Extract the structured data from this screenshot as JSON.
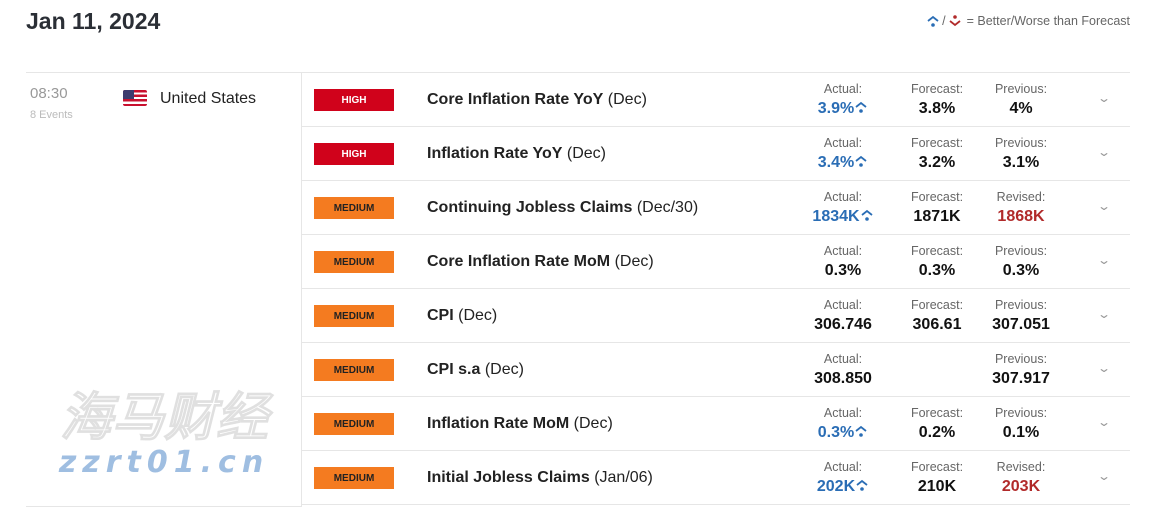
{
  "date": "Jan 11, 2024",
  "legend": {
    "text": "= Better/Worse than Forecast",
    "better_icon": "better-arrow-icon",
    "worse_icon": "worse-arrow-icon",
    "better_color": "#2a6db5",
    "worse_color": "#b12a2a"
  },
  "group": {
    "time": "08:30",
    "count": "8 Events",
    "country": "United States"
  },
  "events": [
    {
      "impact": "HIGH",
      "name": "Core Inflation Rate YoY",
      "period": "(Dec)",
      "l1": "Actual:",
      "actual": "3.9%",
      "trend": "up",
      "l2": "Forecast:",
      "forecast": "3.8%",
      "l3": "Previous:",
      "previous": "4%",
      "prev_color": ""
    },
    {
      "impact": "HIGH",
      "name": "Inflation Rate YoY",
      "period": "(Dec)",
      "l1": "Actual:",
      "actual": "3.4%",
      "trend": "up",
      "l2": "Forecast:",
      "forecast": "3.2%",
      "l3": "Previous:",
      "previous": "3.1%",
      "prev_color": ""
    },
    {
      "impact": "MEDIUM",
      "name": "Continuing Jobless Claims",
      "period": "(Dec/30)",
      "l1": "Actual:",
      "actual": "1834K",
      "trend": "up",
      "l2": "Forecast:",
      "forecast": "1871K",
      "l3": "Revised:",
      "previous": "1868K",
      "prev_color": "#b12a2a"
    },
    {
      "impact": "MEDIUM",
      "name": "Core Inflation Rate MoM",
      "period": "(Dec)",
      "l1": "Actual:",
      "actual": "0.3%",
      "trend": "",
      "l2": "Forecast:",
      "forecast": "0.3%",
      "l3": "Previous:",
      "previous": "0.3%",
      "prev_color": ""
    },
    {
      "impact": "MEDIUM",
      "name": "CPI",
      "period": "(Dec)",
      "l1": "Actual:",
      "actual": "306.746",
      "trend": "",
      "l2": "Forecast:",
      "forecast": "306.61",
      "l3": "Previous:",
      "previous": "307.051",
      "prev_color": ""
    },
    {
      "impact": "MEDIUM",
      "name": "CPI s.a",
      "period": "(Dec)",
      "l1": "Actual:",
      "actual": "308.850",
      "trend": "",
      "l2": "",
      "forecast": "",
      "l3": "Previous:",
      "previous": "307.917",
      "prev_color": ""
    },
    {
      "impact": "MEDIUM",
      "name": "Inflation Rate MoM",
      "period": "(Dec)",
      "l1": "Actual:",
      "actual": "0.3%",
      "trend": "up",
      "l2": "Forecast:",
      "forecast": "0.2%",
      "l3": "Previous:",
      "previous": "0.1%",
      "prev_color": ""
    },
    {
      "impact": "MEDIUM",
      "name": "Initial Jobless Claims",
      "period": "(Jan/06)",
      "l1": "Actual:",
      "actual": "202K",
      "trend": "up",
      "l2": "Forecast:",
      "forecast": "210K",
      "l3": "Revised:",
      "previous": "203K",
      "prev_color": "#b12a2a"
    }
  ],
  "watermark": {
    "line1": "海马财经",
    "line2": "zzrt01.cn"
  }
}
